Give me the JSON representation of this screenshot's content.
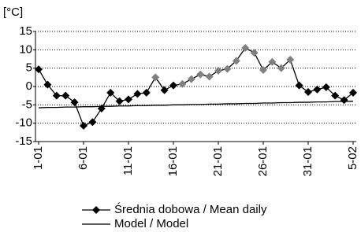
{
  "chart_data": {
    "type": "line",
    "y_label": "[°C]",
    "categories": [
      "1-01",
      null,
      null,
      null,
      null,
      "6-01",
      null,
      null,
      null,
      null,
      "11-01",
      null,
      null,
      null,
      null,
      "16-01",
      null,
      null,
      null,
      null,
      "21-01",
      null,
      null,
      null,
      null,
      "26-01",
      null,
      null,
      null,
      null,
      "31-01",
      null,
      null,
      null,
      null,
      "5-02"
    ],
    "series": [
      {
        "name": "Średnia dobowa / Mean daily",
        "color": "#000000",
        "marker": "diamond",
        "point_colors": [
          "#000000",
          "#000000",
          "#000000",
          "#000000",
          "#000000",
          "#000000",
          "#000000",
          "#000000",
          "#000000",
          "#000000",
          "#000000",
          "#000000",
          "#000000",
          "#808080",
          "#000000",
          "#000000",
          "#808080",
          "#808080",
          "#808080",
          "#808080",
          "#808080",
          "#808080",
          "#808080",
          "#808080",
          "#808080",
          "#808080",
          "#808080",
          "#808080",
          "#808080",
          "#000000",
          "#000000",
          "#000000",
          "#000000",
          "#000000",
          "#000000",
          "#000000"
        ],
        "values": [
          4.7,
          0.5,
          -2.5,
          -2.5,
          -4.3,
          -10.7,
          -9.7,
          -6,
          -1.7,
          -4,
          -3.5,
          -2,
          -1.7,
          2.5,
          -1,
          0.3,
          0.7,
          2,
          3.3,
          2.7,
          4.3,
          4.8,
          7,
          10.5,
          9.2,
          4.5,
          6.7,
          5,
          7.3,
          0.3,
          -1.5,
          -0.8,
          -0.2,
          -2.5,
          -3.7,
          -1.7
        ]
      },
      {
        "name": "Model / Model",
        "color": "#000000",
        "marker": "none",
        "values": [
          -5.8,
          -5.7,
          -5.7,
          -5.6,
          -5.6,
          -5.5,
          -5.5,
          -5.4,
          -5.4,
          -5.3,
          -5.3,
          -5.2,
          -5.2,
          -5.1,
          -5.1,
          -5.0,
          -5.0,
          -4.9,
          -4.9,
          -4.8,
          -4.8,
          -4.7,
          -4.7,
          -4.6,
          -4.6,
          -4.5,
          -4.5,
          -4.4,
          -4.4,
          -4.3,
          -4.3,
          -4.2,
          -4.2,
          -4.1,
          -4.1,
          -4.0
        ]
      }
    ],
    "ylim": [
      -15,
      15
    ],
    "yticks": [
      -15,
      -10,
      -5,
      0,
      5,
      10,
      15
    ],
    "grid": true
  }
}
